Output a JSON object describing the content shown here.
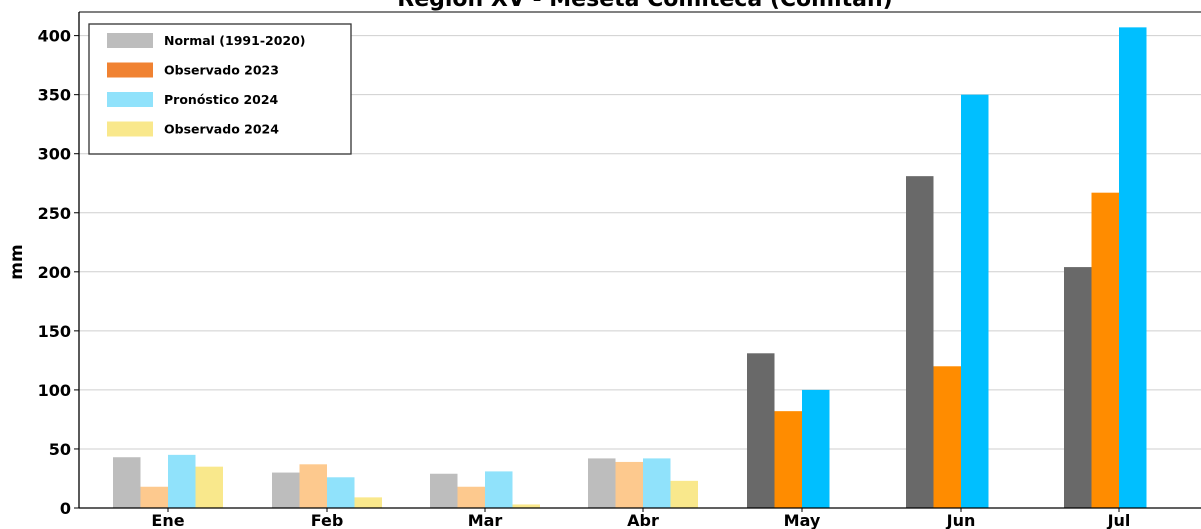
{
  "chart_data": {
    "type": "bar",
    "title": "Región XV - Meseta Comiteca (Comitán)",
    "ylabel": "mm",
    "xlabel": "",
    "ylim": [
      0,
      420
    ],
    "yticks": [
      0,
      50,
      100,
      150,
      200,
      250,
      300,
      350,
      400
    ],
    "grid": "horizontal",
    "legend_position": "top-left",
    "categories": [
      "Ene",
      "Feb",
      "Mar",
      "Abr",
      "May",
      "Jun",
      "Jul"
    ],
    "series": [
      {
        "name": "Normal (1991-2020)",
        "color": "#696969",
        "faded_color": "#bdbdbd",
        "values": [
          43,
          30,
          29,
          42,
          131,
          281,
          204
        ]
      },
      {
        "name": "Observado 2023",
        "color": "#ff8c00",
        "faded_color": "#fdc98e",
        "values": [
          18,
          37,
          18,
          39,
          82,
          120,
          267
        ]
      },
      {
        "name": "Pronóstico 2024",
        "color": "#00bfff",
        "faded_color": "#90e2fb",
        "values": [
          45,
          26,
          31,
          42,
          100,
          350,
          407
        ]
      },
      {
        "name": "Observado 2024",
        "color": "#f5e06a",
        "faded_color": "#f9e88c",
        "values": [
          35,
          9,
          3,
          23,
          null,
          null,
          null
        ]
      }
    ],
    "faded_months": [
      "Ene",
      "Feb",
      "Mar",
      "Abr"
    ]
  }
}
